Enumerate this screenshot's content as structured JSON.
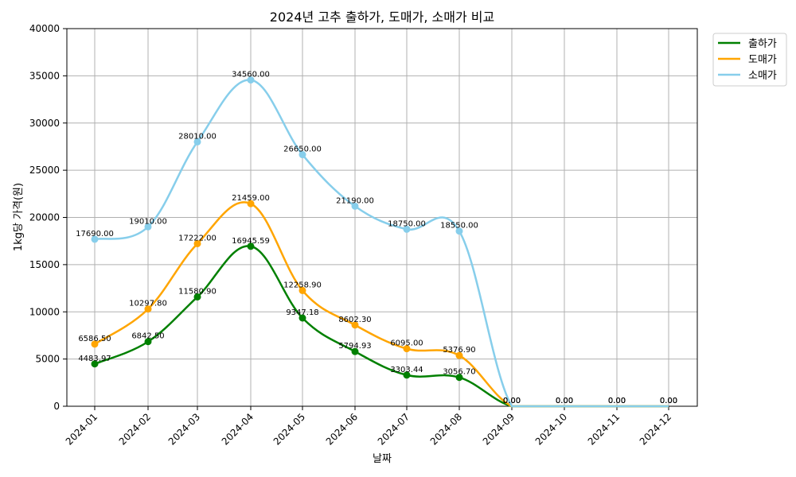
{
  "chart_data": {
    "type": "line",
    "title": "2024년 고추 출하가, 도매가, 소매가 비교",
    "xlabel": "날짜",
    "ylabel": "1kg당 가격(원)",
    "categories": [
      "2024-01",
      "2024-02",
      "2024-03",
      "2024-04",
      "2024-05",
      "2024-06",
      "2024-07",
      "2024-08",
      "2024-09",
      "2024-10",
      "2024-11",
      "2024-12"
    ],
    "ylim": [
      0,
      40000
    ],
    "yticks": [
      0,
      5000,
      10000,
      15000,
      20000,
      25000,
      30000,
      35000,
      40000
    ],
    "grid": true,
    "legend_position": "top-right-outside",
    "series": [
      {
        "name": "출하가",
        "color": "#008000",
        "points": [
          {
            "x": "2024-01",
            "y": 4483.97,
            "label": "4483.97"
          },
          {
            "x": "2024-02",
            "y": 6842.5,
            "label": "6842.50"
          },
          {
            "x": "2024-03",
            "y": 11580.9,
            "label": "11580.90"
          },
          {
            "x": "2024-04",
            "y": 16945.59,
            "label": "16945.59"
          },
          {
            "x": "2024-05",
            "y": 9347.18,
            "label": "9347.18"
          },
          {
            "x": "2024-06",
            "y": 5794.93,
            "label": "5794.93"
          },
          {
            "x": "2024-07",
            "y": 3303.44,
            "label": "3303.44"
          },
          {
            "x": "2024-08",
            "y": 3056.7,
            "label": "3056.70"
          },
          {
            "x": "2024-09",
            "y": 0,
            "label": "0.00"
          },
          {
            "x": "2024-10",
            "y": 0,
            "label": "0.00"
          },
          {
            "x": "2024-11",
            "y": 0,
            "label": "0.00"
          },
          {
            "x": "2024-12",
            "y": 0,
            "label": "0.00"
          }
        ]
      },
      {
        "name": "도매가",
        "color": "#FFA500",
        "points": [
          {
            "x": "2024-01",
            "y": 6586.5,
            "label": "6586.50"
          },
          {
            "x": "2024-02",
            "y": 10297.8,
            "label": "10297.80"
          },
          {
            "x": "2024-03",
            "y": 17222.0,
            "label": "17222.00"
          },
          {
            "x": "2024-04",
            "y": 21459.0,
            "label": "21459.00"
          },
          {
            "x": "2024-05",
            "y": 12258.9,
            "label": "12258.90"
          },
          {
            "x": "2024-06",
            "y": 8602.3,
            "label": "8602.30"
          },
          {
            "x": "2024-07",
            "y": 6095.0,
            "label": "6095.00"
          },
          {
            "x": "2024-08",
            "y": 5376.9,
            "label": "5376.90"
          },
          {
            "x": "2024-09",
            "y": 0,
            "label": "0.00"
          },
          {
            "x": "2024-10",
            "y": 0,
            "label": "0.00"
          },
          {
            "x": "2024-11",
            "y": 0,
            "label": "0.00"
          },
          {
            "x": "2024-12",
            "y": 0,
            "label": "0.00"
          }
        ]
      },
      {
        "name": "소매가",
        "color": "#87CEEB",
        "points": [
          {
            "x": "2024-01",
            "y": 17690.0,
            "label": "17690.00"
          },
          {
            "x": "2024-02",
            "y": 19010.0,
            "label": "19010.00"
          },
          {
            "x": "2024-03",
            "y": 28010.0,
            "label": "28010.00"
          },
          {
            "x": "2024-04",
            "y": 34560.0,
            "label": "34560.00"
          },
          {
            "x": "2024-05",
            "y": 26650.0,
            "label": "26650.00"
          },
          {
            "x": "2024-06",
            "y": 21190.0,
            "label": "21190.00"
          },
          {
            "x": "2024-07",
            "y": 18750.0,
            "label": "18750.00"
          },
          {
            "x": "2024-08",
            "y": 18550.0,
            "label": "18550.00"
          },
          {
            "x": "2024-09",
            "y": 0,
            "label": "0.00"
          },
          {
            "x": "2024-10",
            "y": 0,
            "label": "0.00"
          },
          {
            "x": "2024-11",
            "y": 0,
            "label": "0.00"
          },
          {
            "x": "2024-12",
            "y": 0,
            "label": "0.00"
          }
        ]
      }
    ]
  }
}
